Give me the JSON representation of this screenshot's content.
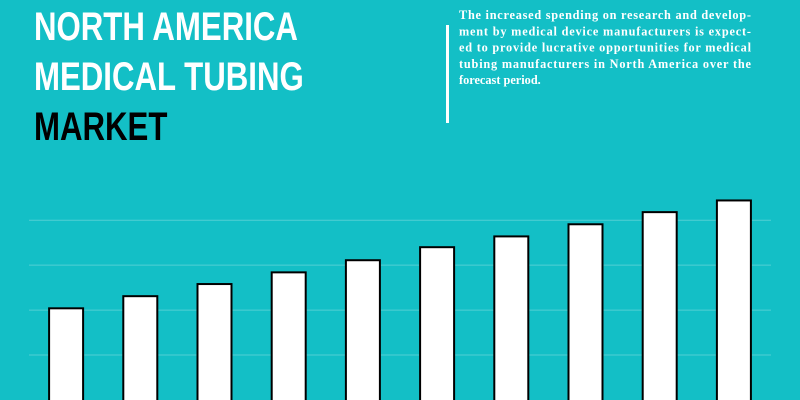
{
  "chart_data": {
    "type": "bar",
    "title": [
      "NORTH AMERICA",
      "MEDICAL TUBING",
      "MARKET"
    ],
    "description": [
      "The increased spending on research and develop-",
      "ment by medical device manufacturers is expect-",
      "ed to provide lucrative opportunities for medical",
      "tubing manufacturers in North America over the",
      "forecast period."
    ],
    "categories": [
      null,
      null,
      null,
      null,
      null,
      null,
      null,
      null,
      null,
      null
    ],
    "values": [
      2.04,
      2.31,
      2.58,
      2.84,
      3.11,
      3.4,
      3.64,
      3.91,
      4.18,
      4.44
    ],
    "color": "#ffffff",
    "ylim": [
      0,
      8.9
    ],
    "yticks": [
      1,
      2,
      3,
      4
    ],
    "grid": true
  }
}
